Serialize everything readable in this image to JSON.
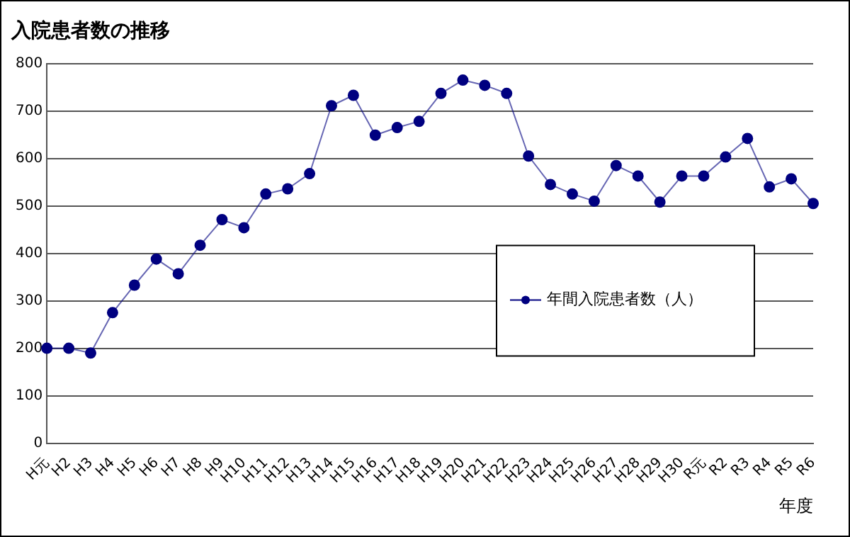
{
  "chart_data": {
    "type": "line",
    "title": "入院患者数の推移",
    "xlabel": "年度",
    "categories": [
      "H元",
      "H2",
      "H3",
      "H4",
      "H5",
      "H6",
      "H7",
      "H8",
      "H9",
      "H10",
      "H11",
      "H12",
      "H13",
      "H14",
      "H15",
      "H16",
      "H17",
      "H18",
      "H19",
      "H20",
      "H21",
      "H22",
      "H23",
      "H24",
      "H25",
      "H26",
      "H27",
      "H28",
      "H29",
      "H30",
      "R元",
      "R2",
      "R3",
      "R4",
      "R5",
      "R6"
    ],
    "series": [
      {
        "name": "年間入院患者数（人）",
        "color": "#000080",
        "values": [
          200,
          200,
          190,
          275,
          333,
          388,
          357,
          417,
          471,
          454,
          525,
          536,
          568,
          711,
          733,
          649,
          665,
          678,
          737,
          765,
          754,
          737,
          605,
          545,
          525,
          510,
          585,
          563,
          508,
          563,
          563,
          603,
          642,
          540,
          557,
          505
        ]
      }
    ],
    "ylim": [
      0,
      800
    ],
    "yticks": [
      0,
      100,
      200,
      300,
      400,
      500,
      600,
      700,
      800
    ],
    "grid": "y",
    "legend": "right",
    "marker": "circle",
    "line_style": "solid"
  }
}
